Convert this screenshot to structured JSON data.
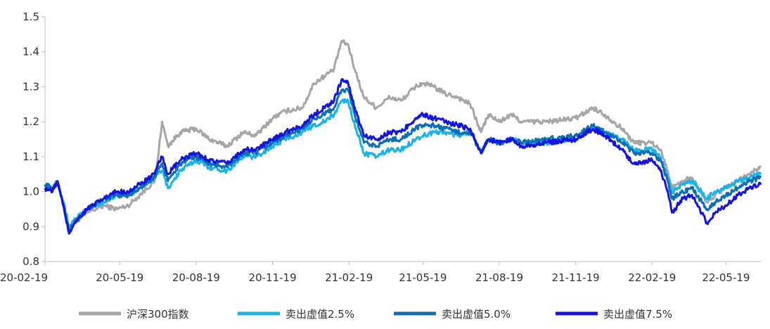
{
  "chart_data": {
    "type": "line",
    "title": "",
    "xlabel": "",
    "ylabel": "",
    "ylim": [
      0.8,
      1.5
    ],
    "yticks": [
      "0.8",
      "0.9",
      "1.0",
      "1.1",
      "1.2",
      "1.3",
      "1.4",
      "1.5"
    ],
    "xlim": [
      "2020-02-19",
      "2022-06-30"
    ],
    "xticks": [
      {
        "date": "2020-02-19",
        "label": "20-02-19"
      },
      {
        "date": "2020-05-19",
        "label": "20-05-19"
      },
      {
        "date": "2020-08-19",
        "label": "20-08-19"
      },
      {
        "date": "2020-11-19",
        "label": "20-11-19"
      },
      {
        "date": "2021-02-19",
        "label": "21-02-19"
      },
      {
        "date": "2021-05-19",
        "label": "21-05-19"
      },
      {
        "date": "2021-08-19",
        "label": "21-08-19"
      },
      {
        "date": "2021-11-19",
        "label": "21-11-19"
      },
      {
        "date": "2022-02-19",
        "label": "22-02-19"
      },
      {
        "date": "2022-05-19",
        "label": "22-05-19"
      }
    ],
    "grid": false,
    "legend_position": "bottom",
    "series": [
      {
        "name": "沪深300指数",
        "color": "#a6a6a6",
        "points": [
          [
            "2020-02-19",
            1.02
          ],
          [
            "2020-02-28",
            1.01
          ],
          [
            "2020-03-05",
            1.03
          ],
          [
            "2020-03-12",
            0.96
          ],
          [
            "2020-03-19",
            0.88
          ],
          [
            "2020-03-25",
            0.91
          ],
          [
            "2020-04-10",
            0.94
          ],
          [
            "2020-04-30",
            0.96
          ],
          [
            "2020-05-15",
            0.95
          ],
          [
            "2020-05-29",
            0.96
          ],
          [
            "2020-06-12",
            0.99
          ],
          [
            "2020-06-30",
            1.03
          ],
          [
            "2020-07-03",
            1.08
          ],
          [
            "2020-07-09",
            1.2
          ],
          [
            "2020-07-16",
            1.13
          ],
          [
            "2020-07-31",
            1.17
          ],
          [
            "2020-08-19",
            1.18
          ],
          [
            "2020-09-04",
            1.15
          ],
          [
            "2020-09-25",
            1.13
          ],
          [
            "2020-10-15",
            1.17
          ],
          [
            "2020-10-30",
            1.16
          ],
          [
            "2020-11-19",
            1.21
          ],
          [
            "2020-12-04",
            1.23
          ],
          [
            "2020-12-25",
            1.24
          ],
          [
            "2021-01-08",
            1.31
          ],
          [
            "2021-01-20",
            1.33
          ],
          [
            "2021-02-01",
            1.35
          ],
          [
            "2021-02-10",
            1.43
          ],
          [
            "2021-02-18",
            1.42
          ],
          [
            "2021-02-26",
            1.35
          ],
          [
            "2021-03-09",
            1.27
          ],
          [
            "2021-03-24",
            1.24
          ],
          [
            "2021-04-09",
            1.27
          ],
          [
            "2021-04-23",
            1.26
          ],
          [
            "2021-05-10",
            1.3
          ],
          [
            "2021-05-19",
            1.31
          ],
          [
            "2021-06-01",
            1.3
          ],
          [
            "2021-06-15",
            1.28
          ],
          [
            "2021-06-30",
            1.27
          ],
          [
            "2021-07-15",
            1.25
          ],
          [
            "2021-07-28",
            1.17
          ],
          [
            "2021-08-06",
            1.22
          ],
          [
            "2021-08-19",
            1.2
          ],
          [
            "2021-09-03",
            1.22
          ],
          [
            "2021-09-15",
            1.2
          ],
          [
            "2021-10-15",
            1.2
          ],
          [
            "2021-11-19",
            1.21
          ],
          [
            "2021-12-10",
            1.24
          ],
          [
            "2021-12-24",
            1.22
          ],
          [
            "2022-01-14",
            1.18
          ],
          [
            "2022-01-28",
            1.14
          ],
          [
            "2022-02-19",
            1.14
          ],
          [
            "2022-03-01",
            1.12
          ],
          [
            "2022-03-10",
            1.06
          ],
          [
            "2022-03-15",
            1.01
          ],
          [
            "2022-03-28",
            1.03
          ],
          [
            "2022-04-08",
            1.04
          ],
          [
            "2022-04-26",
            0.97
          ],
          [
            "2022-05-06",
            0.99
          ],
          [
            "2022-05-19",
            1.01
          ],
          [
            "2022-06-02",
            1.03
          ],
          [
            "2022-06-16",
            1.05
          ],
          [
            "2022-06-30",
            1.07
          ]
        ]
      },
      {
        "name": "卖出虚值2.5%",
        "color": "#1ab2e8",
        "points": [
          [
            "2020-02-19",
            1.02
          ],
          [
            "2020-02-28",
            1.01
          ],
          [
            "2020-03-05",
            1.03
          ],
          [
            "2020-03-12",
            0.97
          ],
          [
            "2020-03-19",
            0.9
          ],
          [
            "2020-03-25",
            0.92
          ],
          [
            "2020-04-10",
            0.95
          ],
          [
            "2020-04-30",
            0.97
          ],
          [
            "2020-05-15",
            0.99
          ],
          [
            "2020-05-29",
            0.99
          ],
          [
            "2020-06-12",
            1.01
          ],
          [
            "2020-06-30",
            1.04
          ],
          [
            "2020-07-03",
            1.05
          ],
          [
            "2020-07-09",
            1.06
          ],
          [
            "2020-07-16",
            1.01
          ],
          [
            "2020-07-31",
            1.06
          ],
          [
            "2020-08-19",
            1.09
          ],
          [
            "2020-09-04",
            1.07
          ],
          [
            "2020-09-25",
            1.06
          ],
          [
            "2020-10-15",
            1.1
          ],
          [
            "2020-10-30",
            1.1
          ],
          [
            "2020-11-19",
            1.13
          ],
          [
            "2020-12-04",
            1.15
          ],
          [
            "2020-12-25",
            1.17
          ],
          [
            "2021-01-08",
            1.19
          ],
          [
            "2021-01-20",
            1.2
          ],
          [
            "2021-02-01",
            1.22
          ],
          [
            "2021-02-10",
            1.26
          ],
          [
            "2021-02-18",
            1.26
          ],
          [
            "2021-02-26",
            1.19
          ],
          [
            "2021-03-09",
            1.11
          ],
          [
            "2021-03-24",
            1.1
          ],
          [
            "2021-04-09",
            1.12
          ],
          [
            "2021-04-23",
            1.12
          ],
          [
            "2021-05-10",
            1.15
          ],
          [
            "2021-05-19",
            1.16
          ],
          [
            "2021-06-01",
            1.17
          ],
          [
            "2021-06-15",
            1.17
          ],
          [
            "2021-06-30",
            1.16
          ],
          [
            "2021-07-15",
            1.17
          ],
          [
            "2021-07-28",
            1.11
          ],
          [
            "2021-08-06",
            1.15
          ],
          [
            "2021-08-19",
            1.14
          ],
          [
            "2021-09-03",
            1.15
          ],
          [
            "2021-09-15",
            1.14
          ],
          [
            "2021-10-15",
            1.14
          ],
          [
            "2021-11-19",
            1.15
          ],
          [
            "2021-12-10",
            1.18
          ],
          [
            "2021-12-24",
            1.17
          ],
          [
            "2022-01-14",
            1.15
          ],
          [
            "2022-01-28",
            1.12
          ],
          [
            "2022-02-19",
            1.12
          ],
          [
            "2022-03-01",
            1.1
          ],
          [
            "2022-03-10",
            1.04
          ],
          [
            "2022-03-15",
            1.0
          ],
          [
            "2022-03-28",
            1.02
          ],
          [
            "2022-04-08",
            1.03
          ],
          [
            "2022-04-26",
            0.98
          ],
          [
            "2022-05-06",
            1.0
          ],
          [
            "2022-05-19",
            1.01
          ],
          [
            "2022-06-02",
            1.03
          ],
          [
            "2022-06-16",
            1.04
          ],
          [
            "2022-06-30",
            1.05
          ]
        ]
      },
      {
        "name": "卖出虚值5.0%",
        "color": "#0b6fb4",
        "points": [
          [
            "2020-02-19",
            1.02
          ],
          [
            "2020-02-28",
            1.01
          ],
          [
            "2020-03-05",
            1.03
          ],
          [
            "2020-03-12",
            0.96
          ],
          [
            "2020-03-19",
            0.89
          ],
          [
            "2020-03-25",
            0.91
          ],
          [
            "2020-04-10",
            0.95
          ],
          [
            "2020-04-30",
            0.98
          ],
          [
            "2020-05-15",
            0.99
          ],
          [
            "2020-05-29",
            0.99
          ],
          [
            "2020-06-12",
            1.01
          ],
          [
            "2020-06-30",
            1.04
          ],
          [
            "2020-07-03",
            1.06
          ],
          [
            "2020-07-09",
            1.08
          ],
          [
            "2020-07-16",
            1.03
          ],
          [
            "2020-07-31",
            1.08
          ],
          [
            "2020-08-19",
            1.1
          ],
          [
            "2020-09-04",
            1.08
          ],
          [
            "2020-09-25",
            1.07
          ],
          [
            "2020-10-15",
            1.11
          ],
          [
            "2020-10-30",
            1.11
          ],
          [
            "2020-11-19",
            1.14
          ],
          [
            "2020-12-04",
            1.16
          ],
          [
            "2020-12-25",
            1.18
          ],
          [
            "2021-01-08",
            1.21
          ],
          [
            "2021-01-20",
            1.22
          ],
          [
            "2021-02-01",
            1.24
          ],
          [
            "2021-02-10",
            1.29
          ],
          [
            "2021-02-18",
            1.29
          ],
          [
            "2021-02-26",
            1.22
          ],
          [
            "2021-03-09",
            1.14
          ],
          [
            "2021-03-24",
            1.13
          ],
          [
            "2021-04-09",
            1.15
          ],
          [
            "2021-04-23",
            1.15
          ],
          [
            "2021-05-10",
            1.18
          ],
          [
            "2021-05-19",
            1.19
          ],
          [
            "2021-06-01",
            1.19
          ],
          [
            "2021-06-15",
            1.18
          ],
          [
            "2021-06-30",
            1.17
          ],
          [
            "2021-07-15",
            1.17
          ],
          [
            "2021-07-28",
            1.11
          ],
          [
            "2021-08-06",
            1.15
          ],
          [
            "2021-08-19",
            1.14
          ],
          [
            "2021-09-03",
            1.15
          ],
          [
            "2021-09-15",
            1.14
          ],
          [
            "2021-10-15",
            1.15
          ],
          [
            "2021-11-19",
            1.16
          ],
          [
            "2021-12-10",
            1.19
          ],
          [
            "2021-12-24",
            1.17
          ],
          [
            "2022-01-14",
            1.14
          ],
          [
            "2022-01-28",
            1.11
          ],
          [
            "2022-02-19",
            1.11
          ],
          [
            "2022-03-01",
            1.09
          ],
          [
            "2022-03-10",
            1.03
          ],
          [
            "2022-03-15",
            0.98
          ],
          [
            "2022-03-28",
            1.0
          ],
          [
            "2022-04-08",
            1.01
          ],
          [
            "2022-04-26",
            0.95
          ],
          [
            "2022-05-06",
            0.97
          ],
          [
            "2022-05-19",
            0.99
          ],
          [
            "2022-06-02",
            1.01
          ],
          [
            "2022-06-16",
            1.03
          ],
          [
            "2022-06-30",
            1.04
          ]
        ]
      },
      {
        "name": "卖出虚值7.5%",
        "color": "#1414e0",
        "points": [
          [
            "2020-02-19",
            1.01
          ],
          [
            "2020-02-28",
            1.0
          ],
          [
            "2020-03-05",
            1.03
          ],
          [
            "2020-03-12",
            0.96
          ],
          [
            "2020-03-19",
            0.88
          ],
          [
            "2020-03-25",
            0.91
          ],
          [
            "2020-04-10",
            0.95
          ],
          [
            "2020-04-30",
            0.98
          ],
          [
            "2020-05-15",
            1.0
          ],
          [
            "2020-05-29",
            1.0
          ],
          [
            "2020-06-12",
            1.02
          ],
          [
            "2020-06-30",
            1.05
          ],
          [
            "2020-07-03",
            1.07
          ],
          [
            "2020-07-09",
            1.1
          ],
          [
            "2020-07-16",
            1.05
          ],
          [
            "2020-07-31",
            1.09
          ],
          [
            "2020-08-19",
            1.11
          ],
          [
            "2020-09-04",
            1.09
          ],
          [
            "2020-09-25",
            1.08
          ],
          [
            "2020-10-15",
            1.12
          ],
          [
            "2020-10-30",
            1.12
          ],
          [
            "2020-11-19",
            1.15
          ],
          [
            "2020-12-04",
            1.17
          ],
          [
            "2020-12-25",
            1.19
          ],
          [
            "2021-01-08",
            1.22
          ],
          [
            "2021-01-20",
            1.24
          ],
          [
            "2021-02-01",
            1.26
          ],
          [
            "2021-02-10",
            1.32
          ],
          [
            "2021-02-18",
            1.31
          ],
          [
            "2021-02-26",
            1.24
          ],
          [
            "2021-03-09",
            1.16
          ],
          [
            "2021-03-24",
            1.15
          ],
          [
            "2021-04-09",
            1.17
          ],
          [
            "2021-04-23",
            1.17
          ],
          [
            "2021-05-10",
            1.21
          ],
          [
            "2021-05-19",
            1.22
          ],
          [
            "2021-06-01",
            1.21
          ],
          [
            "2021-06-15",
            1.2
          ],
          [
            "2021-06-30",
            1.19
          ],
          [
            "2021-07-15",
            1.18
          ],
          [
            "2021-07-28",
            1.11
          ],
          [
            "2021-08-06",
            1.15
          ],
          [
            "2021-08-19",
            1.14
          ],
          [
            "2021-09-03",
            1.15
          ],
          [
            "2021-09-15",
            1.13
          ],
          [
            "2021-10-15",
            1.14
          ],
          [
            "2021-11-19",
            1.15
          ],
          [
            "2021-12-10",
            1.18
          ],
          [
            "2021-12-24",
            1.16
          ],
          [
            "2022-01-14",
            1.12
          ],
          [
            "2022-01-28",
            1.08
          ],
          [
            "2022-02-19",
            1.09
          ],
          [
            "2022-03-01",
            1.06
          ],
          [
            "2022-03-10",
            1.0
          ],
          [
            "2022-03-15",
            0.94
          ],
          [
            "2022-03-28",
            0.98
          ],
          [
            "2022-04-08",
            0.99
          ],
          [
            "2022-04-26",
            0.91
          ],
          [
            "2022-05-06",
            0.94
          ],
          [
            "2022-05-19",
            0.96
          ],
          [
            "2022-06-02",
            0.99
          ],
          [
            "2022-06-16",
            1.01
          ],
          [
            "2022-06-30",
            1.02
          ]
        ]
      }
    ]
  }
}
